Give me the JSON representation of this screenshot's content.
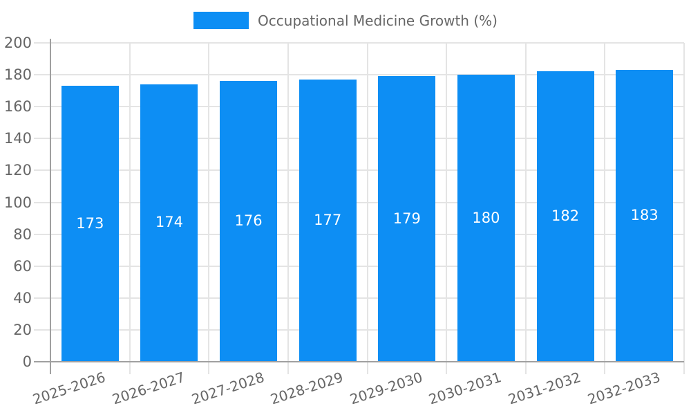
{
  "legend": {
    "label": "Occupational Medicine Growth (%)"
  },
  "chart_data": {
    "type": "bar",
    "title": "Occupational Medicine Growth (%)",
    "categories": [
      "2025-2026",
      "2026-2027",
      "2027-2028",
      "2028-2029",
      "2029-2030",
      "2030-2031",
      "2031-2032",
      "2032-2033"
    ],
    "values": [
      173,
      174,
      176,
      177,
      179,
      180,
      182,
      183
    ],
    "xlabel": "",
    "ylabel": "",
    "ylim": [
      0,
      200
    ],
    "yticks": [
      0,
      20,
      40,
      60,
      80,
      100,
      120,
      140,
      160,
      180,
      200
    ],
    "grid": true,
    "legend_position": "top",
    "bar_color": "#0D8EF4",
    "value_label_color": "#FFFFFF",
    "grid_color": "#E4E4E4",
    "axis_color": "#A0A0A0",
    "tick_label_color": "#666666"
  }
}
